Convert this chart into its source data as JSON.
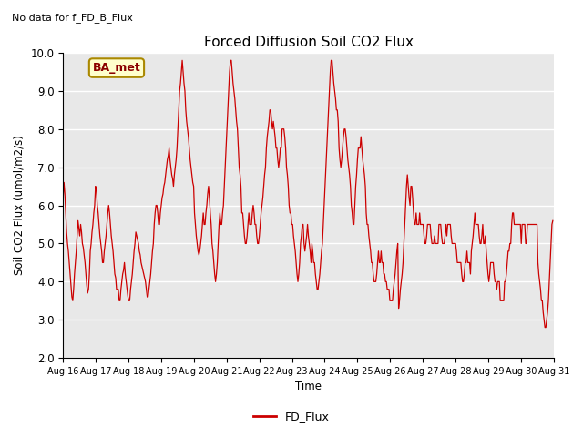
{
  "title": "Forced Diffusion Soil CO2 Flux",
  "top_left_text": "No data for f_FD_B_Flux",
  "xlabel": "Time",
  "ylabel": "Soil CO2 Flux (umol/m2/s)",
  "ylim": [
    2.0,
    10.0
  ],
  "yticks": [
    2.0,
    3.0,
    4.0,
    5.0,
    6.0,
    7.0,
    8.0,
    9.0,
    10.0
  ],
  "legend_label": "FD_Flux",
  "line_color": "#cc0000",
  "background_color": "#e8e8e8",
  "box_label": "BA_met",
  "box_facecolor": "#ffffcc",
  "box_edgecolor": "#aa8800",
  "flux_data": [
    6.2,
    6.6,
    6.3,
    5.8,
    5.3,
    5.0,
    4.8,
    4.5,
    4.2,
    3.9,
    3.6,
    3.5,
    3.8,
    4.2,
    4.5,
    4.8,
    5.2,
    5.6,
    5.4,
    5.2,
    5.5,
    5.3,
    5.0,
    4.9,
    4.7,
    4.5,
    4.2,
    3.9,
    3.7,
    3.8,
    4.2,
    4.8,
    5.0,
    5.3,
    5.5,
    5.8,
    6.0,
    6.5,
    6.4,
    6.0,
    5.8,
    5.5,
    5.2,
    5.0,
    4.8,
    4.5,
    4.5,
    4.8,
    5.0,
    5.2,
    5.5,
    5.8,
    6.0,
    5.8,
    5.5,
    5.2,
    5.0,
    4.8,
    4.5,
    4.2,
    4.1,
    3.8,
    3.8,
    3.8,
    3.5,
    3.5,
    3.8,
    4.0,
    4.2,
    4.3,
    4.5,
    4.2,
    4.0,
    3.8,
    3.6,
    3.5,
    3.5,
    3.8,
    4.0,
    4.2,
    4.5,
    4.8,
    5.0,
    5.3,
    5.2,
    5.1,
    5.0,
    4.8,
    4.7,
    4.5,
    4.4,
    4.3,
    4.2,
    4.1,
    4.0,
    3.8,
    3.6,
    3.6,
    3.8,
    4.0,
    4.2,
    4.5,
    4.8,
    5.0,
    5.5,
    5.8,
    6.0,
    6.0,
    5.8,
    5.5,
    5.5,
    5.8,
    6.0,
    6.2,
    6.3,
    6.5,
    6.6,
    6.8,
    7.0,
    7.2,
    7.3,
    7.5,
    7.2,
    7.0,
    6.8,
    6.7,
    6.5,
    6.8,
    7.0,
    7.2,
    7.5,
    8.0,
    8.5,
    9.0,
    9.2,
    9.5,
    9.8,
    9.5,
    9.2,
    9.0,
    8.5,
    8.2,
    8.0,
    7.8,
    7.5,
    7.2,
    7.0,
    6.8,
    6.6,
    6.5,
    5.8,
    5.5,
    5.2,
    5.0,
    4.8,
    4.7,
    4.8,
    5.0,
    5.2,
    5.5,
    5.8,
    5.5,
    5.5,
    5.8,
    6.0,
    6.3,
    6.5,
    6.2,
    5.8,
    5.5,
    5.0,
    4.8,
    4.5,
    4.2,
    4.0,
    4.2,
    4.5,
    5.0,
    5.5,
    5.8,
    5.5,
    5.5,
    5.8,
    6.0,
    6.5,
    7.0,
    7.5,
    8.0,
    8.5,
    9.0,
    9.5,
    9.8,
    9.8,
    9.5,
    9.2,
    9.0,
    8.8,
    8.5,
    8.2,
    8.0,
    7.5,
    7.0,
    6.8,
    6.5,
    5.8,
    5.8,
    5.5,
    5.2,
    5.0,
    5.0,
    5.2,
    5.5,
    5.8,
    5.5,
    5.5,
    5.5,
    5.8,
    6.0,
    5.8,
    5.5,
    5.5,
    5.2,
    5.0,
    5.0,
    5.2,
    5.5,
    5.8,
    6.0,
    6.2,
    6.5,
    6.8,
    7.0,
    7.5,
    7.8,
    8.0,
    8.2,
    8.5,
    8.5,
    8.2,
    8.0,
    8.2,
    8.0,
    7.8,
    7.5,
    7.5,
    7.2,
    7.0,
    7.2,
    7.5,
    7.5,
    8.0,
    8.0,
    8.0,
    7.8,
    7.5,
    7.0,
    6.8,
    6.5,
    6.0,
    5.8,
    5.8,
    5.5,
    5.5,
    5.2,
    5.0,
    4.8,
    4.5,
    4.2,
    4.0,
    4.2,
    4.5,
    5.0,
    5.2,
    5.5,
    5.5,
    5.0,
    4.8,
    5.0,
    5.2,
    5.5,
    5.2,
    5.0,
    4.8,
    4.5,
    5.0,
    4.8,
    4.5,
    4.5,
    4.2,
    4.0,
    3.8,
    3.8,
    4.0,
    4.2,
    4.5,
    4.8,
    5.0,
    5.5,
    6.0,
    6.5,
    7.0,
    7.5,
    8.0,
    8.5,
    9.0,
    9.5,
    9.8,
    9.8,
    9.5,
    9.2,
    9.0,
    8.8,
    8.5,
    8.5,
    8.2,
    7.5,
    7.2,
    7.0,
    7.2,
    7.5,
    7.8,
    8.0,
    8.0,
    7.8,
    7.5,
    7.2,
    7.0,
    6.8,
    6.5,
    6.0,
    5.8,
    5.5,
    5.5,
    6.0,
    6.5,
    6.8,
    7.2,
    7.5,
    7.5,
    7.5,
    7.8,
    7.5,
    7.2,
    7.0,
    6.8,
    6.5,
    5.8,
    5.5,
    5.5,
    5.2,
    5.0,
    4.8,
    4.5,
    4.5,
    4.2,
    4.0,
    4.0,
    4.0,
    4.2,
    4.5,
    4.8,
    4.5,
    4.5,
    4.8,
    4.5,
    4.5,
    4.2,
    4.2,
    4.0,
    4.0,
    3.8,
    3.8,
    3.8,
    3.5,
    3.5,
    3.5,
    3.5,
    3.8,
    4.0,
    4.2,
    4.5,
    4.8,
    5.0,
    3.3,
    3.5,
    3.8,
    4.0,
    4.2,
    4.5,
    5.0,
    5.5,
    6.0,
    6.5,
    6.8,
    6.5,
    6.2,
    6.0,
    6.5,
    6.5,
    6.2,
    5.8,
    5.5,
    5.5,
    5.8,
    5.5,
    5.5,
    5.5,
    5.8,
    5.5,
    5.5,
    5.5,
    5.5,
    5.2,
    5.0,
    5.0,
    5.2,
    5.5,
    5.5,
    5.5,
    5.5,
    5.2,
    5.0,
    5.0,
    5.0,
    5.2,
    5.0,
    5.0,
    5.0,
    5.0,
    5.5,
    5.5,
    5.5,
    5.2,
    5.0,
    5.0,
    5.0,
    5.2,
    5.5,
    5.2,
    5.5,
    5.5,
    5.5,
    5.5,
    5.2,
    5.0,
    5.0,
    5.0,
    5.0,
    5.0,
    4.8,
    4.5,
    4.5,
    4.5,
    4.5,
    4.5,
    4.2,
    4.0,
    4.0,
    4.2,
    4.5,
    4.5,
    4.8,
    4.5,
    4.5,
    4.5,
    4.2,
    4.8,
    5.0,
    5.2,
    5.5,
    5.8,
    5.5,
    5.5,
    5.5,
    5.5,
    5.2,
    5.0,
    5.0,
    5.2,
    5.5,
    5.0,
    5.0,
    5.2,
    4.8,
    4.5,
    4.2,
    4.0,
    4.2,
    4.5,
    4.5,
    4.5,
    4.5,
    4.2,
    4.0,
    4.0,
    3.8,
    4.0,
    4.0,
    4.0,
    3.5,
    3.5,
    3.5,
    3.5,
    3.5,
    4.0,
    4.0,
    4.2,
    4.5,
    4.8,
    4.8,
    5.0,
    5.0,
    5.5,
    5.8,
    5.8,
    5.5,
    5.5,
    5.5,
    5.5,
    5.5,
    5.5,
    5.5,
    5.5,
    5.0,
    5.5,
    5.5,
    5.5,
    5.5,
    5.0,
    5.0,
    5.5,
    5.5,
    5.5,
    5.5,
    5.5,
    5.5,
    5.5,
    5.5,
    5.5,
    5.5,
    5.5,
    5.5,
    4.5,
    4.2,
    4.0,
    3.8,
    3.5,
    3.5,
    3.2,
    3.0,
    2.8,
    2.8,
    3.0,
    3.2,
    3.5,
    4.0,
    4.5,
    5.0,
    5.5,
    5.6
  ]
}
